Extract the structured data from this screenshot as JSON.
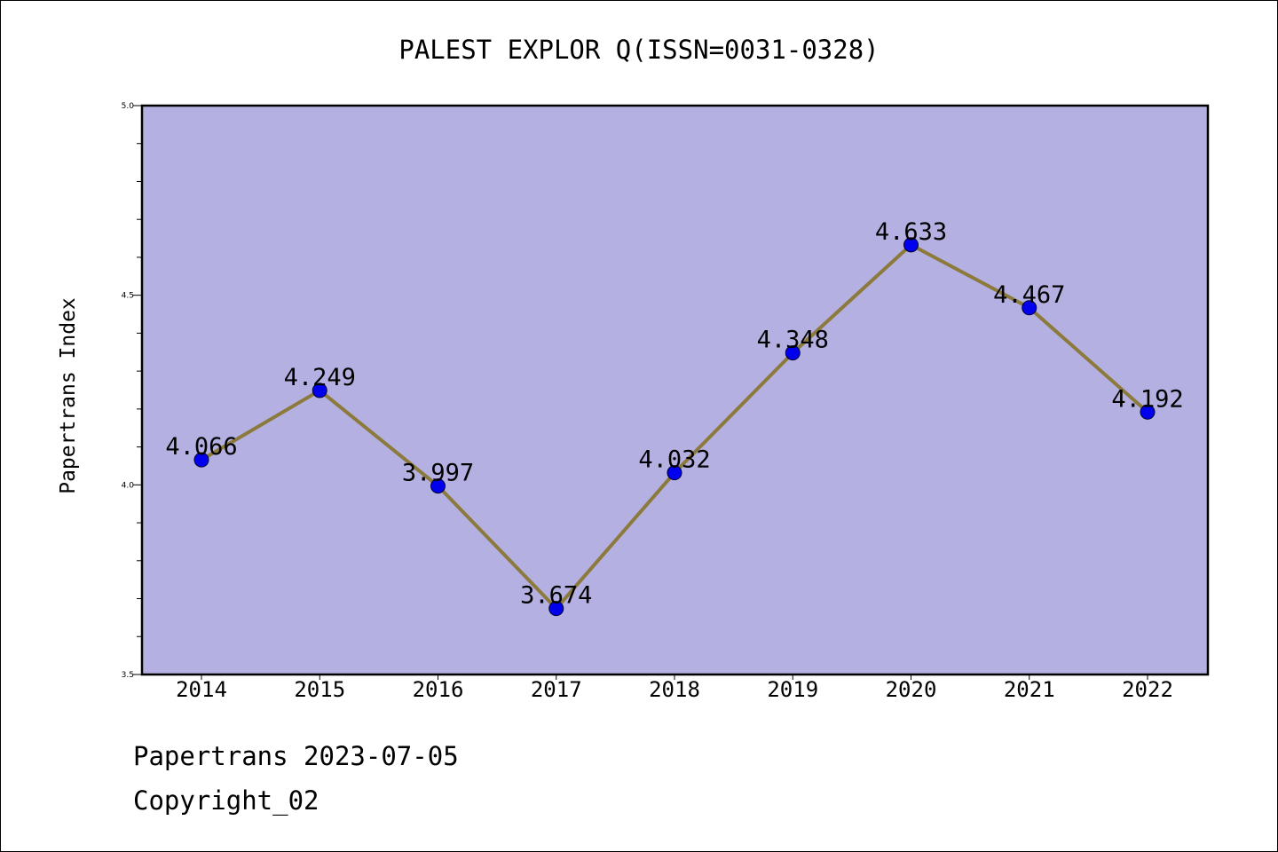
{
  "chart_data": {
    "type": "line",
    "title": "PALEST EXPLOR Q(ISSN=0031-0328)",
    "xlabel": "",
    "ylabel": "Papertrans Index",
    "categories": [
      "2014",
      "2015",
      "2016",
      "2017",
      "2018",
      "2019",
      "2020",
      "2021",
      "2022"
    ],
    "values": [
      4.066,
      4.249,
      3.997,
      3.674,
      4.032,
      4.348,
      4.633,
      4.467,
      4.192
    ],
    "data_labels": [
      "4.066",
      "4.249",
      "3.997",
      "3.674",
      "4.032",
      "4.348",
      "4.633",
      "4.467",
      "4.192"
    ],
    "ylim": [
      3.5,
      5.0
    ],
    "yticks": [
      "3.5",
      "4.0",
      "4.5",
      "5.0"
    ],
    "grid": false,
    "colors": {
      "plot_background": "#b5b0e2",
      "line": "#8b7a3c",
      "marker": "#0000ee"
    }
  },
  "footer": {
    "source": "Papertrans 2023-07-05",
    "copyright": "Copyright_02"
  }
}
